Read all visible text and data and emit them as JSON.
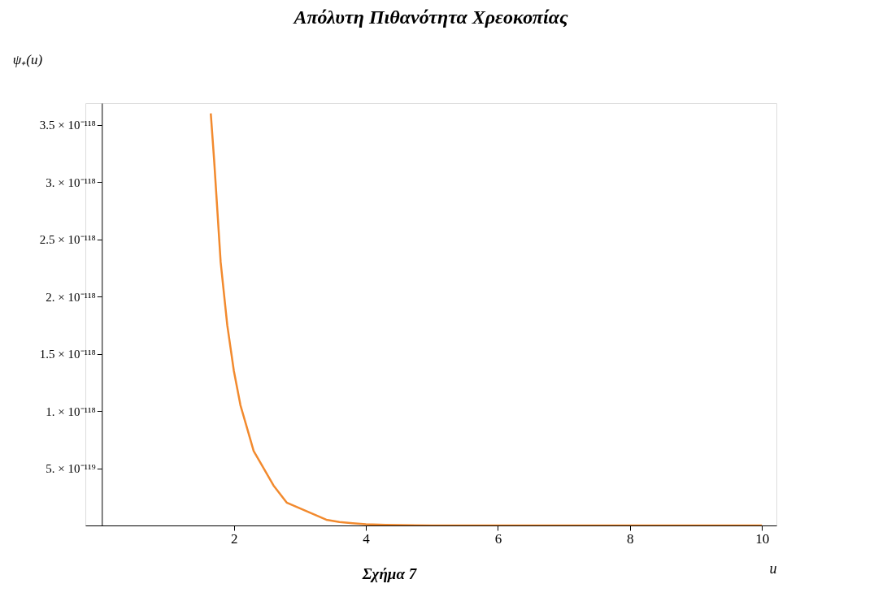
{
  "chart_data": {
    "type": "line",
    "title": "Απόλυτη Πιθανότητα Χρεοκοπίας",
    "xlabel": "u",
    "ylabel": "ψ₊(u)",
    "annotations": [
      "Σχήμα 7"
    ],
    "x": [
      1.65,
      1.7,
      1.8,
      1.9,
      2.0,
      2.1,
      2.2,
      2.3,
      2.4,
      2.6,
      2.8,
      3.0,
      3.2,
      3.4,
      3.6,
      3.8,
      4.0,
      4.3,
      5,
      6,
      7,
      8,
      9,
      10
    ],
    "series": [
      {
        "color": "#f28a2e",
        "values": [
          3.6e-118,
          3.2e-118,
          2.3e-118,
          1.75e-118,
          1.35e-118,
          1.05e-118,
          8.5e-119,
          6.5e-119,
          5.5e-119,
          3.5e-119,
          2e-119,
          1.5e-119,
          1e-119,
          5e-120,
          3e-120,
          2e-120,
          1e-120,
          5e-121,
          0,
          0,
          0,
          0,
          0,
          0
        ]
      }
    ],
    "xlim": [
      -0.25,
      10.22
    ],
    "ylim": [
      0,
      3.69e-118
    ],
    "xticks": [
      2,
      4,
      6,
      8,
      10
    ],
    "yticks": [
      {
        "value": 5e-119,
        "label": "5. × 10⁻¹¹⁹"
      },
      {
        "value": 1e-118,
        "label": "1. × 10⁻¹¹⁸"
      },
      {
        "value": 1.5e-118,
        "label": "1.5 × 10⁻¹¹⁸"
      },
      {
        "value": 2e-118,
        "label": "2. × 10⁻¹¹⁸"
      },
      {
        "value": 2.5e-118,
        "label": "2.5 × 10⁻¹¹⁸"
      },
      {
        "value": 3e-118,
        "label": "3. × 10⁻¹¹⁸"
      },
      {
        "value": 3.5e-118,
        "label": "3.5 × 10⁻¹¹⁸"
      }
    ],
    "grid": false,
    "marker": "none",
    "line_style": "solid"
  }
}
